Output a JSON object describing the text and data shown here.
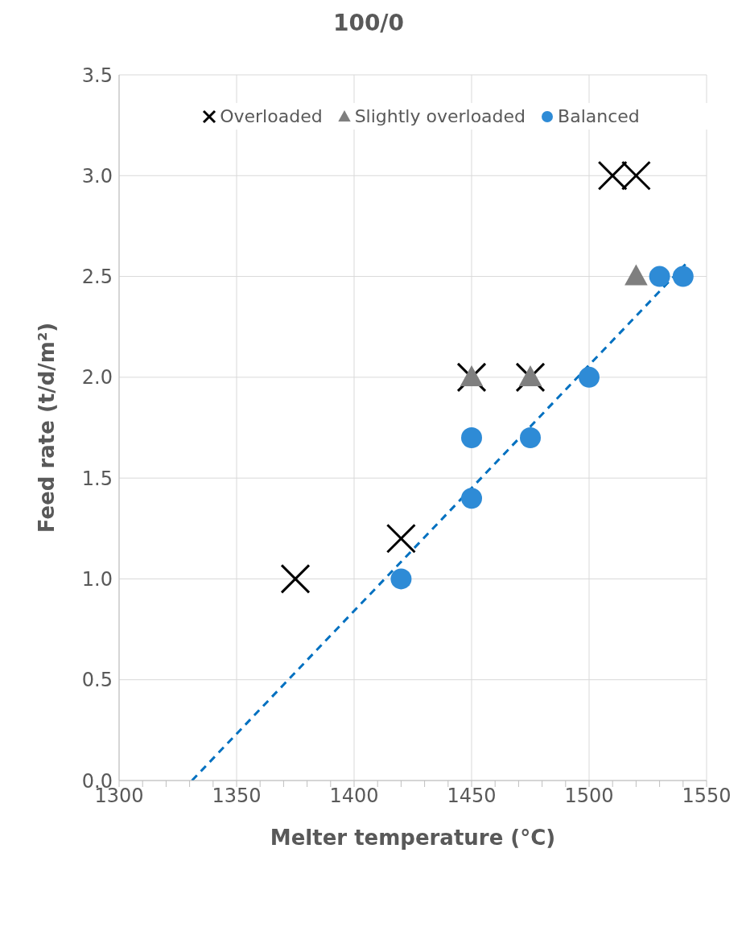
{
  "chart_data": {
    "type": "scatter",
    "title": "100/0",
    "xlabel": "Melter temperature (°C)",
    "ylabel": "Feed rate (t/d/m²)",
    "xlim": [
      1300,
      1550
    ],
    "xticks": [
      1300,
      {
        "value": 1310,
        "label": null
      },
      {
        "value": 1320,
        "label": null
      },
      {
        "value": 1330,
        "label": null
      },
      {
        "value": 1340,
        "label": null
      },
      1350,
      {
        "value": 1360,
        "label": null
      },
      {
        "value": 1370,
        "label": null
      },
      {
        "value": 1380,
        "label": null
      },
      {
        "value": 1390,
        "label": null
      },
      1400,
      {
        "value": 1410,
        "label": null
      },
      {
        "value": 1420,
        "label": null
      },
      {
        "value": 1430,
        "label": null
      },
      {
        "value": 1440,
        "label": null
      },
      1450,
      {
        "value": 1460,
        "label": null
      },
      {
        "value": 1470,
        "label": null
      },
      {
        "value": 1480,
        "label": null
      },
      {
        "value": 1490,
        "label": null
      },
      1500,
      {
        "value": 1510,
        "label": null
      },
      {
        "value": 1520,
        "label": null
      },
      {
        "value": 1530,
        "label": null
      },
      {
        "value": 1540,
        "label": null
      },
      1550
    ],
    "ylim": [
      0,
      3.5
    ],
    "yticks": [
      {
        "value": 0,
        "label": "0.0"
      },
      {
        "value": 0.5,
        "label": "0.5"
      },
      {
        "value": 1,
        "label": "1.0"
      },
      {
        "value": 1.5,
        "label": "1.5"
      },
      {
        "value": 2,
        "label": "2.0"
      },
      {
        "value": 2.5,
        "label": "2.5"
      },
      {
        "value": 3,
        "label": "3.0"
      },
      {
        "value": 3.5,
        "label": "3.5"
      }
    ],
    "grid": true,
    "legend": "top",
    "series": [
      {
        "type": "line",
        "color": "#0070c0",
        "line_style": "dashed",
        "marker": "none",
        "x": [
          1331,
          1541
        ],
        "values": [
          0,
          2.56
        ]
      },
      {
        "name": "Overloaded",
        "color": "#000000",
        "marker": "cross",
        "x": [
          1375,
          1420,
          1450,
          1475,
          1510,
          1520
        ],
        "values": [
          1.0,
          1.2,
          2.0,
          2.0,
          3.0,
          3.0
        ]
      },
      {
        "name": "Slightly overloaded",
        "color": "#7f7f7f",
        "marker": "triangle",
        "x": [
          1450,
          1475,
          1520
        ],
        "values": [
          2.0,
          2.0,
          2.5
        ]
      },
      {
        "name": "Balanced",
        "color": "#2e8bd6",
        "marker": "circle",
        "x": [
          1420,
          1450,
          1450,
          1475,
          1500,
          1530,
          1540
        ],
        "values": [
          1.0,
          1.4,
          1.7,
          1.7,
          2.0,
          2.5,
          2.5
        ]
      }
    ]
  }
}
